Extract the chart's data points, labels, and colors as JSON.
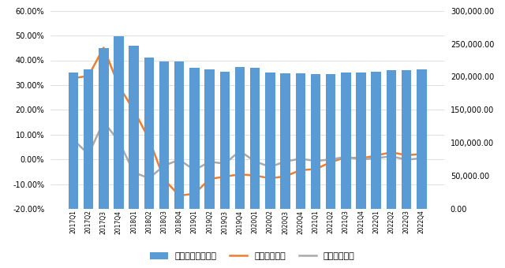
{
  "categories": [
    "2017Q1",
    "2017Q2",
    "2017Q3",
    "2017Q4",
    "2018Q1",
    "2018Q2",
    "2018Q3",
    "2018Q4",
    "2019Q1",
    "2019Q2",
    "2019Q3",
    "2019Q4",
    "2020Q1",
    "2020Q2",
    "2020Q3",
    "2020Q4",
    "2021Q1",
    "2021Q2",
    "2021Q3",
    "2021Q4",
    "2022Q1",
    "2022Q2",
    "2022Q3",
    "2022Q4"
  ],
  "bar_values": [
    206700,
    211100,
    243100,
    261000,
    247500,
    228700,
    223100,
    222900,
    213300,
    211300,
    207700,
    214900,
    213200,
    206900,
    205200,
    205900,
    204700,
    204700,
    206900,
    206900,
    207900,
    210600,
    210500,
    211500
  ],
  "yoy_values": [
    0.328,
    0.337,
    0.451,
    0.297,
    0.198,
    0.082,
    -0.081,
    -0.146,
    -0.138,
    -0.079,
    -0.069,
    -0.06,
    -0.065,
    -0.076,
    -0.068,
    -0.043,
    -0.039,
    -0.011,
    0.009,
    0.004,
    0.016,
    0.029,
    0.017,
    0.022
  ],
  "qoq_values": [
    0.08,
    0.021,
    0.152,
    0.074,
    -0.052,
    -0.076,
    -0.025,
    -0.001,
    -0.043,
    -0.009,
    -0.017,
    0.034,
    -0.008,
    -0.03,
    -0.008,
    0.003,
    -0.006,
    0.0,
    0.011,
    0.0,
    0.005,
    0.013,
    -0.001,
    0.005
  ],
  "bar_color": "#5B9BD5",
  "yoy_color": "#ED7D31",
  "qoq_color": "#A9A9A9",
  "left_ylim": [
    -0.2,
    0.6
  ],
  "right_ylim": [
    0,
    300000
  ],
  "left_yticks": [
    -0.2,
    -0.1,
    0.0,
    0.1,
    0.2,
    0.3,
    0.4,
    0.5,
    0.6
  ],
  "right_yticks": [
    0,
    50000,
    100000,
    150000,
    200000,
    250000,
    300000
  ],
  "legend_labels": [
    "信托资产（亿元）",
    "季度同比增速",
    "季度环比增速"
  ],
  "background_color": "#FFFFFF",
  "grid_color": "#D3D3D3"
}
